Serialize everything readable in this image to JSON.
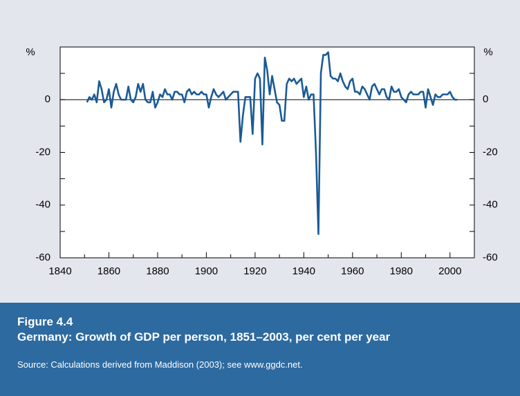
{
  "chart_data": {
    "type": "line",
    "figure_label": "Figure 4.4",
    "title": "Germany: Growth of GDP per person, 1851–2003, per cent per year",
    "source": "Source: Calculations derived from Maddison (2003); see www.ggdc.net.",
    "yunit": "%",
    "xlim": [
      1840,
      2010
    ],
    "xticks": [
      1840,
      1860,
      1880,
      1900,
      1920,
      1940,
      1960,
      1980,
      2000
    ],
    "xticks_minor": [
      1850,
      1870,
      1890,
      1910,
      1930,
      1950,
      1970,
      1990
    ],
    "ylim": [
      -60,
      20
    ],
    "yticks": [
      -60,
      -40,
      -20,
      0
    ],
    "yticks_minor": [
      -50,
      -30,
      -10,
      10
    ],
    "color": "#1a5a96",
    "x": [
      1851,
      1852,
      1853,
      1854,
      1855,
      1856,
      1857,
      1858,
      1859,
      1860,
      1861,
      1862,
      1863,
      1864,
      1865,
      1866,
      1867,
      1868,
      1869,
      1870,
      1871,
      1872,
      1873,
      1874,
      1875,
      1876,
      1877,
      1878,
      1879,
      1880,
      1881,
      1882,
      1883,
      1884,
      1885,
      1886,
      1887,
      1888,
      1889,
      1890,
      1891,
      1892,
      1893,
      1894,
      1895,
      1896,
      1897,
      1898,
      1899,
      1900,
      1901,
      1902,
      1903,
      1904,
      1905,
      1906,
      1907,
      1908,
      1909,
      1910,
      1911,
      1912,
      1913,
      1914,
      1915,
      1916,
      1917,
      1918,
      1919,
      1920,
      1921,
      1922,
      1923,
      1924,
      1925,
      1926,
      1927,
      1928,
      1929,
      1930,
      1931,
      1932,
      1933,
      1934,
      1935,
      1936,
      1937,
      1938,
      1939,
      1940,
      1941,
      1942,
      1943,
      1944,
      1945,
      1946,
      1947,
      1948,
      1949,
      1950,
      1951,
      1952,
      1953,
      1954,
      1955,
      1956,
      1957,
      1958,
      1959,
      1960,
      1961,
      1962,
      1963,
      1964,
      1965,
      1966,
      1967,
      1968,
      1969,
      1970,
      1971,
      1972,
      1973,
      1974,
      1975,
      1976,
      1977,
      1978,
      1979,
      1980,
      1981,
      1982,
      1983,
      1984,
      1985,
      1986,
      1987,
      1988,
      1989,
      1990,
      1991,
      1992,
      1993,
      1994,
      1995,
      1996,
      1997,
      1998,
      1999,
      2000,
      2001,
      2002,
      2003
    ],
    "values": [
      -1,
      1,
      0,
      2,
      -1,
      7,
      4,
      -1,
      0,
      4,
      -3,
      3,
      6,
      2,
      0,
      0,
      0,
      5,
      0,
      -1,
      1,
      6,
      3,
      6,
      0,
      -1,
      -1,
      3,
      -3,
      -1,
      2,
      1,
      4,
      2,
      2,
      0,
      3,
      3,
      2,
      2,
      -1,
      3,
      4,
      2,
      3,
      2,
      2,
      3,
      2,
      2,
      -3,
      1,
      4,
      2,
      1,
      2,
      3,
      0,
      1,
      2,
      3,
      3,
      3,
      -16,
      -6,
      1,
      1,
      1,
      -13,
      8,
      10,
      8,
      -17,
      16,
      11,
      2,
      9,
      4,
      -1,
      -2,
      -8,
      -8,
      6,
      8,
      7,
      8,
      6,
      7,
      8,
      1,
      5,
      0,
      2,
      2,
      -20,
      -51,
      10,
      17,
      17,
      18,
      9,
      8,
      8,
      7,
      10,
      7,
      5,
      4,
      7,
      8,
      3,
      3,
      2,
      5,
      4,
      2,
      0,
      5,
      6,
      4,
      2,
      4,
      4,
      1,
      0,
      5,
      3,
      3,
      4,
      1,
      0,
      -1,
      2,
      3,
      2,
      2,
      2,
      3,
      3,
      -3,
      4,
      1,
      -2,
      2,
      1,
      1,
      2,
      2,
      2,
      3,
      1,
      0,
      0
    ]
  }
}
